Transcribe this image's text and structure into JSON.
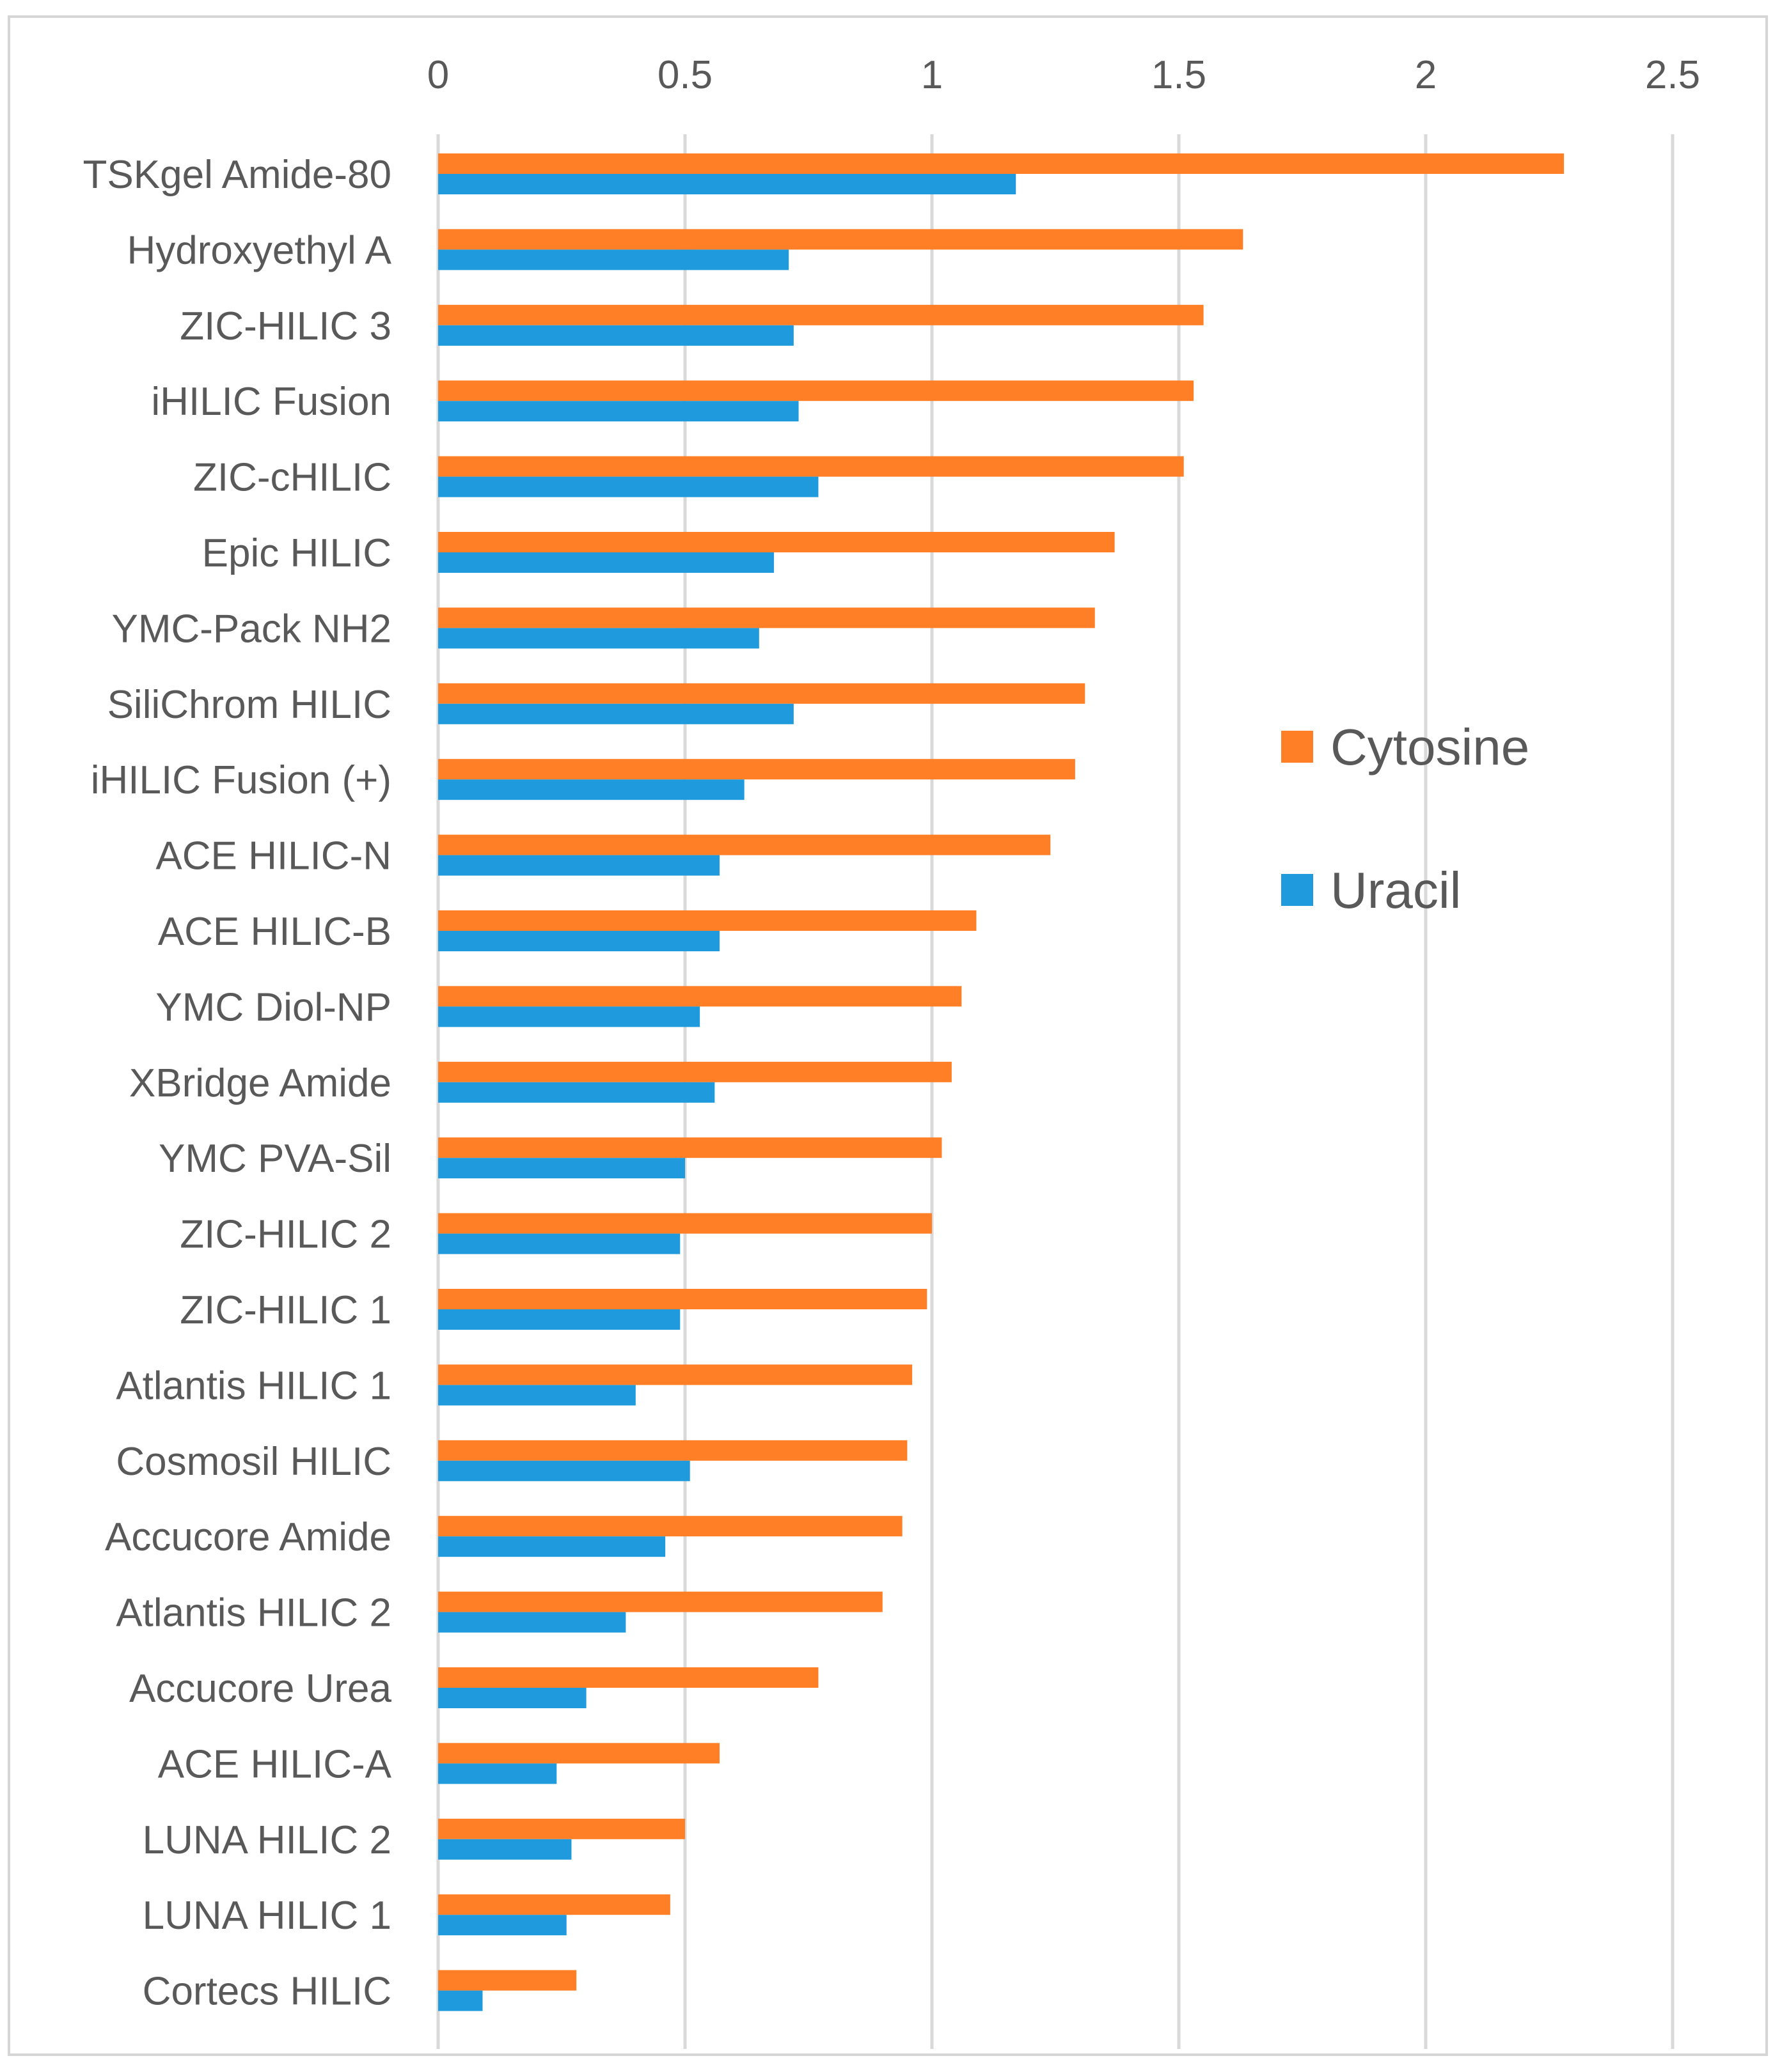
{
  "chart_data": {
    "type": "bar",
    "orientation": "horizontal",
    "title": "",
    "xlabel": "",
    "ylabel": "",
    "xlim": [
      0,
      2.5
    ],
    "x_ticks": [
      0,
      0.5,
      1,
      1.5,
      2,
      2.5
    ],
    "x_tick_labels": [
      "0",
      "0.5",
      "1",
      "1.5",
      "2",
      "2.5"
    ],
    "x_axis_position": "top",
    "grid": true,
    "legend_position": "right",
    "categories": [
      "TSKgel Amide-80",
      "Hydroxyethyl A",
      "ZIC-HILIC 3",
      "iHILIC Fusion",
      "ZIC-cHILIC",
      "Epic HILIC",
      "YMC-Pack NH2",
      "SiliChrom HILIC",
      "iHILIC Fusion (+)",
      "ACE HILIC-N",
      "ACE HILIC-B",
      "YMC Diol-NP",
      "XBridge Amide",
      "YMC PVA-Sil",
      "ZIC-HILIC 2",
      "ZIC-HILIC 1",
      "Atlantis HILIC 1",
      "Cosmosil HILIC",
      "Accucore Amide",
      "Atlantis HILIC 2",
      "Accucore Urea",
      "ACE HILIC-A",
      "LUNA HILIC 2",
      "LUNA HILIC 1",
      "Cortecs HILIC"
    ],
    "series": [
      {
        "name": "Cytosine",
        "color": "#ff7f27",
        "values": [
          2.28,
          1.63,
          1.55,
          1.53,
          1.51,
          1.37,
          1.33,
          1.31,
          1.29,
          1.24,
          1.09,
          1.06,
          1.04,
          1.02,
          1.0,
          0.99,
          0.96,
          0.95,
          0.94,
          0.9,
          0.77,
          0.57,
          0.5,
          0.47,
          0.28
        ]
      },
      {
        "name": "Uracil",
        "color": "#1f9bdd",
        "values": [
          1.17,
          0.71,
          0.72,
          0.73,
          0.77,
          0.68,
          0.65,
          0.72,
          0.62,
          0.57,
          0.57,
          0.53,
          0.56,
          0.5,
          0.49,
          0.49,
          0.4,
          0.51,
          0.46,
          0.38,
          0.3,
          0.24,
          0.27,
          0.26,
          0.09
        ]
      }
    ]
  }
}
